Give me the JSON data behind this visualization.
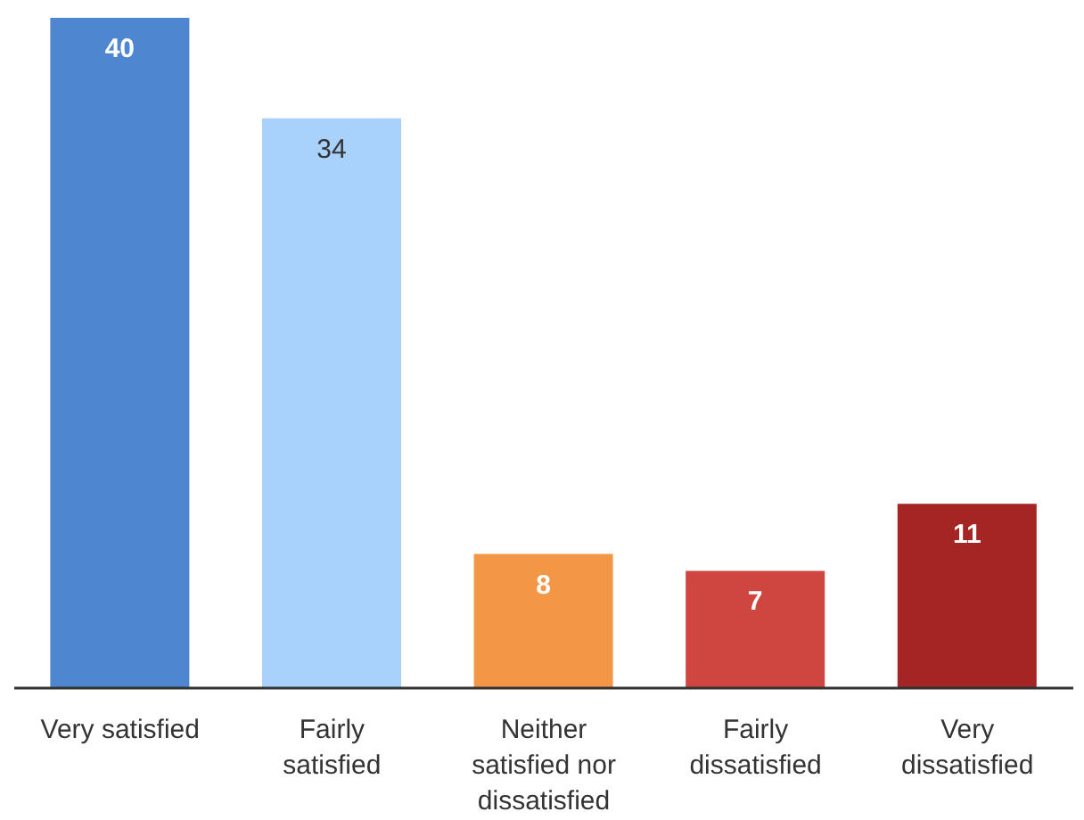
{
  "chart_data": {
    "type": "bar",
    "categories": [
      "Very satisfied",
      "Fairly satisfied",
      "Neither satisfied nor dissatisfied",
      "Fairly dissatisfied",
      "Very dissatisfied"
    ],
    "values": [
      40,
      34,
      8,
      7,
      11
    ],
    "colors": [
      "#4f86d0",
      "#a8d1fb",
      "#f39646",
      "#cf4540",
      "#a52525"
    ],
    "data_labels": true,
    "grid": false
  }
}
